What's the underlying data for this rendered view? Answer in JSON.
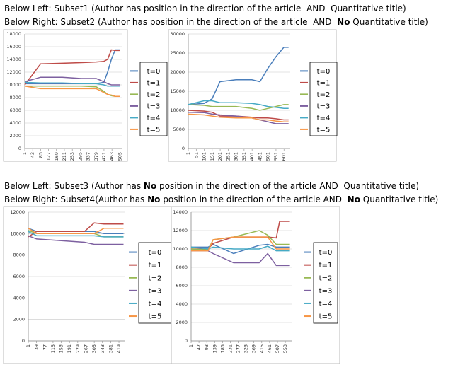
{
  "captions": [
    [
      "Below Left: Subset1 (Author has position in the direction of the article  AND  Quantitative title)"
    ],
    [
      "Below Right: Subset2 (Author has position in the direction of the article  AND  ",
      "No",
      " Quantitative title)"
    ],
    [
      "Below Left: Subset3 (Author has ",
      "No",
      " position in the direction of the article AND  Quantitative title)"
    ],
    [
      "Below Right: Subset4(Author has ",
      "No",
      " position in the direction of the article AND  ",
      "No",
      " Quantitative title)"
    ]
  ],
  "chart_data": [
    {
      "type": "line",
      "grid": true,
      "x": [
        1,
        85,
        200,
        300,
        380,
        420,
        440,
        460,
        480,
        505
      ],
      "xlim": [
        1,
        515
      ],
      "xticks": [
        1,
        43,
        85,
        127,
        169,
        211,
        253,
        295,
        337,
        379,
        421,
        463,
        505
      ],
      "ylim": [
        0,
        18000
      ],
      "yticks": [
        0,
        2000,
        4000,
        6000,
        8000,
        10000,
        12000,
        14000,
        16000,
        18000
      ],
      "series": [
        {
          "name": "t=0",
          "color": "#4a7ebb",
          "values": [
            10200,
            10200,
            10200,
            10200,
            10200,
            10400,
            12000,
            14000,
            15500,
            15500
          ]
        },
        {
          "name": "t=1",
          "color": "#be4b48",
          "values": [
            10000,
            13300,
            13400,
            13500,
            13600,
            13700,
            14000,
            15500,
            15400,
            15400
          ]
        },
        {
          "name": "t=2",
          "color": "#98b954",
          "values": [
            9800,
            9800,
            9800,
            9800,
            9700,
            9000,
            8500,
            8300,
            8200,
            8200
          ]
        },
        {
          "name": "t=3",
          "color": "#7d60a0",
          "values": [
            10500,
            11200,
            11200,
            11000,
            11000,
            10500,
            10200,
            10000,
            10000,
            10000
          ]
        },
        {
          "name": "t=4",
          "color": "#46aac5",
          "values": [
            10400,
            10300,
            10300,
            10200,
            10200,
            10000,
            9800,
            9800,
            9800,
            9800
          ]
        },
        {
          "name": "t=5",
          "color": "#f79646",
          "values": [
            9800,
            9400,
            9400,
            9400,
            9400,
            8800,
            8500,
            8400,
            8200,
            8200
          ]
        }
      ]
    },
    {
      "type": "line",
      "grid": true,
      "x": [
        1,
        100,
        150,
        200,
        300,
        400,
        450,
        500,
        550,
        600,
        630
      ],
      "xlim": [
        1,
        640
      ],
      "xticks": [
        1,
        51,
        101,
        151,
        201,
        251,
        301,
        351,
        401,
        451,
        501,
        551,
        601
      ],
      "ylim": [
        0,
        30000
      ],
      "yticks": [
        0,
        5000,
        10000,
        15000,
        20000,
        25000,
        30000
      ],
      "series": [
        {
          "name": "t=0",
          "color": "#4a7ebb",
          "values": [
            11500,
            11800,
            13000,
            17500,
            18000,
            18000,
            17500,
            21000,
            24000,
            26500,
            26500
          ]
        },
        {
          "name": "t=1",
          "color": "#be4b48",
          "values": [
            10000,
            9800,
            9500,
            8500,
            8500,
            8200,
            8000,
            8000,
            7800,
            7500,
            7500
          ]
        },
        {
          "name": "t=2",
          "color": "#98b954",
          "values": [
            11500,
            11300,
            11000,
            11000,
            11000,
            10500,
            10000,
            10500,
            11000,
            11500,
            11500
          ]
        },
        {
          "name": "t=3",
          "color": "#7d60a0",
          "values": [
            9500,
            9400,
            9000,
            8800,
            8500,
            8000,
            7500,
            7000,
            6500,
            6500,
            6500
          ]
        },
        {
          "name": "t=4",
          "color": "#46aac5",
          "values": [
            11500,
            12500,
            12500,
            12000,
            12000,
            11800,
            11500,
            11000,
            10800,
            10500,
            10500
          ]
        },
        {
          "name": "t=5",
          "color": "#f79646",
          "values": [
            9000,
            8800,
            8500,
            8200,
            8000,
            8000,
            7500,
            7500,
            7200,
            7000,
            7000
          ]
        }
      ]
    },
    {
      "type": "line",
      "grid": true,
      "x": [
        1,
        40,
        260,
        305,
        350,
        440
      ],
      "xlim": [
        1,
        445
      ],
      "xticks": [
        1,
        39,
        77,
        115,
        153,
        191,
        229,
        267,
        305,
        343,
        381,
        419
      ],
      "ylim": [
        0,
        12000
      ],
      "yticks": [
        0,
        2000,
        4000,
        6000,
        8000,
        10000,
        12000
      ],
      "series": [
        {
          "name": "t=0",
          "color": "#4a7ebb",
          "values": [
            10500,
            10200,
            10200,
            10200,
            10000,
            10000
          ]
        },
        {
          "name": "t=1",
          "color": "#be4b48",
          "values": [
            9700,
            10200,
            10200,
            11000,
            10900,
            10900
          ]
        },
        {
          "name": "t=2",
          "color": "#98b954",
          "values": [
            10300,
            10000,
            10000,
            10000,
            9700,
            9700
          ]
        },
        {
          "name": "t=3",
          "color": "#7d60a0",
          "values": [
            9800,
            9500,
            9200,
            9000,
            9000,
            9000
          ]
        },
        {
          "name": "t=4",
          "color": "#46aac5",
          "values": [
            10200,
            9800,
            9800,
            9800,
            9700,
            9700
          ]
        },
        {
          "name": "t=5",
          "color": "#f79646",
          "values": [
            10500,
            10000,
            10000,
            10000,
            10500,
            10500
          ]
        }
      ]
    },
    {
      "type": "line",
      "grid": true,
      "x": [
        1,
        100,
        130,
        250,
        400,
        450,
        500,
        520,
        580
      ],
      "xlim": [
        1,
        590
      ],
      "xticks": [
        1,
        47,
        93,
        139,
        185,
        231,
        277,
        323,
        369,
        415,
        461,
        507,
        553
      ],
      "ylim": [
        0,
        14000
      ],
      "yticks": [
        0,
        2000,
        4000,
        6000,
        8000,
        10000,
        12000,
        14000
      ],
      "series": [
        {
          "name": "t=0",
          "color": "#4a7ebb",
          "values": [
            10200,
            10200,
            10500,
            9500,
            10400,
            10500,
            10200,
            10200,
            10200
          ]
        },
        {
          "name": "t=1",
          "color": "#be4b48",
          "values": [
            10000,
            10000,
            10600,
            11300,
            11300,
            11300,
            11200,
            13000,
            13000
          ]
        },
        {
          "name": "t=2",
          "color": "#98b954",
          "values": [
            10000,
            9900,
            11000,
            11300,
            12000,
            11500,
            10500,
            10500,
            10500
          ]
        },
        {
          "name": "t=3",
          "color": "#7d60a0",
          "values": [
            9800,
            9800,
            9500,
            8500,
            8500,
            9500,
            8200,
            8200,
            8200
          ]
        },
        {
          "name": "t=4",
          "color": "#46aac5",
          "values": [
            10200,
            10000,
            10200,
            10000,
            10000,
            10300,
            9800,
            9800,
            9800
          ]
        },
        {
          "name": "t=5",
          "color": "#f79646",
          "values": [
            9800,
            9800,
            11000,
            11300,
            11300,
            11300,
            10000,
            10000,
            10000
          ]
        }
      ]
    }
  ]
}
